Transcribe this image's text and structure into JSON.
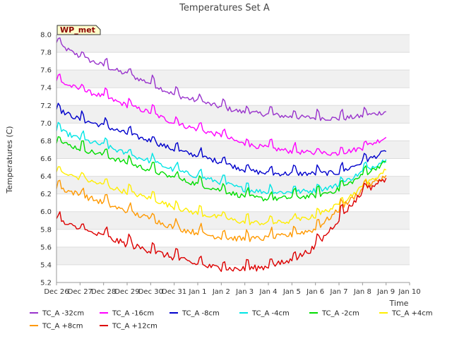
{
  "chart_data": {
    "type": "line",
    "title": "Temperatures Set A",
    "xlabel": "Time",
    "ylabel": "Temperatures (C)",
    "site_label": "WP_met",
    "ylim": [
      5.2,
      8.0
    ],
    "y_ticks": [
      "5.2",
      "5.4",
      "5.6",
      "5.8",
      "6.0",
      "6.2",
      "6.4",
      "6.6",
      "6.8",
      "7.0",
      "7.2",
      "7.4",
      "7.6",
      "7.8",
      "8.0"
    ],
    "x_ticks": [
      "Dec 26",
      "Dec 27",
      "Dec 28",
      "Dec 29",
      "Dec 30",
      "Dec 31",
      "Jan 1",
      "Jan 2",
      "Jan 3",
      "Jan 4",
      "Jan 5",
      "Jan 6",
      "Jan 7",
      "Jan 8",
      "Jan 9",
      "Jan 10"
    ],
    "x_dates": [
      "Dec 26",
      "Dec 27",
      "Dec 28",
      "Dec 29",
      "Dec 30",
      "Dec 31",
      "Jan 1",
      "Jan 2",
      "Jan 3",
      "Jan 4",
      "Jan 5",
      "Jan 6",
      "Jan 7",
      "Jan 8",
      "Jan 9"
    ],
    "grid": true,
    "legend_position": "bottom",
    "series": [
      {
        "name": "TC_A -32cm",
        "color": "#9933cc",
        "values": [
          7.9,
          7.75,
          7.65,
          7.55,
          7.45,
          7.32,
          7.25,
          7.18,
          7.12,
          7.1,
          7.07,
          7.06,
          7.05,
          7.08,
          7.13
        ],
        "noise": 0.035
      },
      {
        "name": "TC_A -16cm",
        "color": "#ff00ff",
        "values": [
          7.48,
          7.38,
          7.3,
          7.2,
          7.12,
          7.0,
          6.93,
          6.86,
          6.76,
          6.72,
          6.68,
          6.66,
          6.66,
          6.72,
          6.84
        ],
        "noise": 0.035
      },
      {
        "name": "TC_A -8cm",
        "color": "#0000cc",
        "values": [
          7.16,
          7.04,
          6.97,
          6.88,
          6.8,
          6.7,
          6.63,
          6.56,
          6.47,
          6.43,
          6.43,
          6.43,
          6.44,
          6.56,
          6.68
        ],
        "noise": 0.035
      },
      {
        "name": "TC_A -4cm",
        "color": "#00e5e5",
        "values": [
          6.93,
          6.82,
          6.75,
          6.65,
          6.57,
          6.47,
          6.4,
          6.33,
          6.25,
          6.22,
          6.22,
          6.24,
          6.3,
          6.45,
          6.59
        ],
        "noise": 0.035
      },
      {
        "name": "TC_A -2cm",
        "color": "#00dd00",
        "values": [
          6.8,
          6.71,
          6.64,
          6.55,
          6.47,
          6.38,
          6.31,
          6.24,
          6.17,
          6.14,
          6.16,
          6.18,
          6.25,
          6.41,
          6.56
        ],
        "noise": 0.035
      },
      {
        "name": "TC_A +4cm",
        "color": "#ffee00",
        "values": [
          6.45,
          6.38,
          6.3,
          6.22,
          6.15,
          6.05,
          5.98,
          5.93,
          5.88,
          5.87,
          5.89,
          5.95,
          6.08,
          6.28,
          6.47
        ],
        "noise": 0.035
      },
      {
        "name": "TC_A +8cm",
        "color": "#ff9900",
        "values": [
          6.28,
          6.19,
          6.1,
          6.0,
          5.92,
          5.82,
          5.76,
          5.71,
          5.69,
          5.7,
          5.74,
          5.8,
          6.02,
          6.25,
          6.41
        ],
        "noise": 0.04
      },
      {
        "name": "TC_A +12cm",
        "color": "#dd0000",
        "values": [
          5.9,
          5.8,
          5.72,
          5.63,
          5.56,
          5.48,
          5.4,
          5.36,
          5.35,
          5.38,
          5.45,
          5.6,
          5.92,
          6.22,
          6.38
        ],
        "noise": 0.045
      }
    ]
  }
}
